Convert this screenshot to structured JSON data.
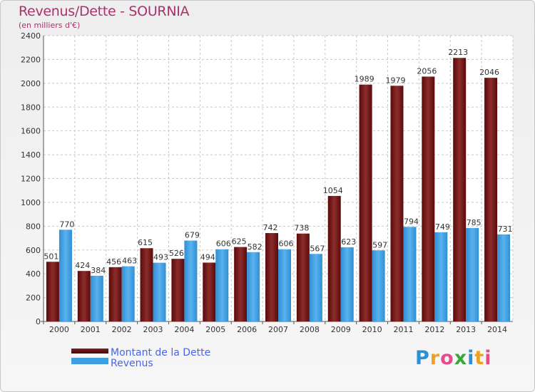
{
  "chart_data": {
    "type": "bar",
    "title": "Revenus/Dette - SOURNIA",
    "subtitle": "(en milliers d'€)",
    "categories": [
      "2000",
      "2001",
      "2002",
      "2003",
      "2004",
      "2005",
      "2006",
      "2007",
      "2008",
      "2009",
      "2010",
      "2011",
      "2012",
      "2013",
      "2014"
    ],
    "series": [
      {
        "name": "Montant de la Dette",
        "color": "#7a1a1a",
        "values": [
          501,
          424,
          456,
          615,
          526,
          494,
          625,
          742,
          738,
          1054,
          1989,
          1979,
          2056,
          2213,
          2046
        ]
      },
      {
        "name": "Revenus",
        "color": "#3d9ee0",
        "values": [
          770,
          384,
          463,
          493,
          679,
          606,
          582,
          606,
          567,
          623,
          597,
          794,
          749,
          785,
          731
        ]
      }
    ],
    "y_ticks": [
      0,
      200,
      400,
      600,
      800,
      1000,
      1200,
      1400,
      1600,
      1800,
      2000,
      2200,
      2400
    ],
    "ylim": [
      0,
      2400
    ],
    "grid": true,
    "legend_position": "bottom-left"
  },
  "logo": {
    "text": "Proxiti",
    "letters": [
      {
        "char": "P",
        "color": "#2d8fd6"
      },
      {
        "char": "r",
        "color": "#f0a020"
      },
      {
        "char": "o",
        "color": "#e84b8a"
      },
      {
        "char": "x",
        "color": "#3aa63a"
      },
      {
        "char": "i",
        "color": "#2d8fd6"
      },
      {
        "char": "t",
        "color": "#f0a020"
      },
      {
        "char": "i",
        "color": "#e84b8a"
      }
    ]
  }
}
